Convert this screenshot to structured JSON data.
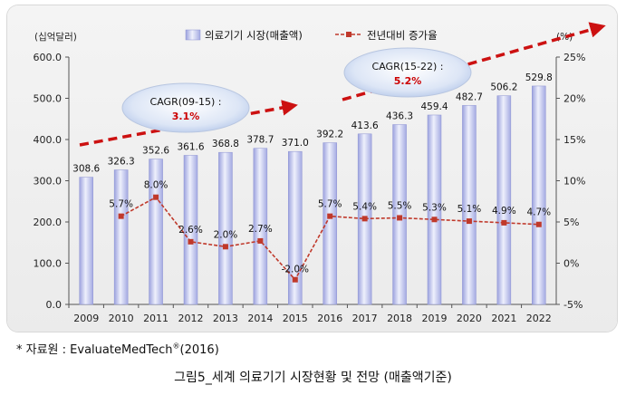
{
  "chart_data": {
    "type": "bar",
    "title": "",
    "y_unit_left": "(십억달러)",
    "y_unit_right": "(%)",
    "ylim": [
      0,
      600
    ],
    "yticks_left": [
      "0.0",
      "100.0",
      "200.0",
      "300.0",
      "400.0",
      "500.0",
      "600.0"
    ],
    "y2lim": [
      -5,
      25
    ],
    "yticks_right": [
      "-5%",
      "0%",
      "5%",
      "10%",
      "15%",
      "20%",
      "25%"
    ],
    "legend_position": "top",
    "categories": [
      "2009",
      "2010",
      "2011",
      "2012",
      "2013",
      "2014",
      "2015",
      "2016",
      "2017",
      "2018",
      "2019",
      "2020",
      "2021",
      "2022"
    ],
    "series": [
      {
        "name": "의료기기 시장(매출액)",
        "type": "bar",
        "axis": "left",
        "values": [
          308.6,
          326.3,
          352.6,
          361.6,
          368.8,
          378.7,
          371.0,
          392.2,
          413.6,
          436.3,
          459.4,
          482.7,
          506.2,
          529.8
        ],
        "labels": [
          "308.6",
          "326.3",
          "352.6",
          "361.6",
          "368.8",
          "378.7",
          "371.0",
          "392.2",
          "413.6",
          "436.3",
          "459.4",
          "482.7",
          "506.2",
          "529.8"
        ]
      },
      {
        "name": "전년대비 증가율",
        "type": "line",
        "axis": "right",
        "values": [
          null,
          5.7,
          8.0,
          2.6,
          2.0,
          2.7,
          -2.0,
          5.7,
          5.4,
          5.5,
          5.3,
          5.1,
          4.9,
          4.7
        ],
        "labels": [
          "",
          "5.7%",
          "8.0%",
          "2.6%",
          "2.0%",
          "2.7%",
          "-2.0%",
          "5.7%",
          "5.4%",
          "5.5%",
          "5.3%",
          "5.1%",
          "4.9%",
          "4.7%"
        ]
      }
    ],
    "annotations": [
      {
        "label": "CAGR(09-15) :",
        "value": "3.1%"
      },
      {
        "label": "CAGR(15-22) :",
        "value": "5.2%"
      }
    ],
    "colors": {
      "bar": "#aeb3e6",
      "bar_highlight": "#eef0fc",
      "line": "#c0392b",
      "trend_arrow": "#cc1111",
      "cagr_value": "#cc0000"
    }
  },
  "source": {
    "label": "* 자료원 : ",
    "text": "EvaluateMedTech",
    "sup": "®",
    "year": "(2016)"
  },
  "caption": "그림5_세계 의료기기 시장현황 및 전망 (매출액기준)"
}
